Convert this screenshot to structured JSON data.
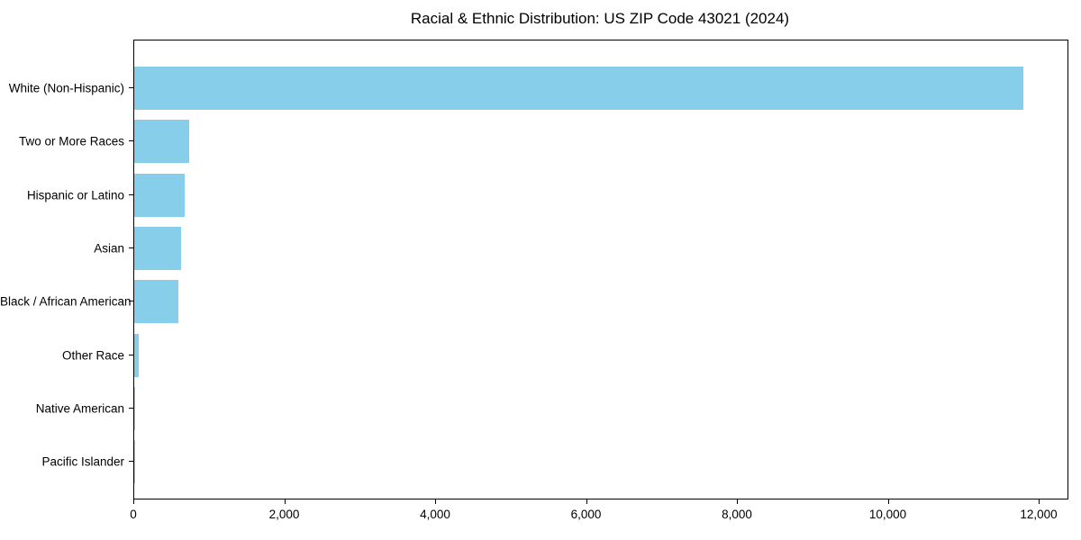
{
  "title": "Racial & Ethnic Distribution: US ZIP Code 43021 (2024)",
  "colors": {
    "bar": "#87CEEB",
    "axis": "#000000",
    "background": "#FFFFFF",
    "text": "#000000"
  },
  "chart_data": {
    "type": "bar",
    "orientation": "horizontal",
    "title": "Racial & Ethnic Distribution: US ZIP Code 43021 (2024)",
    "xlabel": "",
    "ylabel": "",
    "categories": [
      "White (Non-Hispanic)",
      "Two or More Races",
      "Hispanic or Latino",
      "Asian",
      "Black / African American",
      "Other Race",
      "Native American",
      "Pacific Islander"
    ],
    "values": [
      11780,
      725,
      670,
      620,
      585,
      55,
      12,
      3
    ],
    "xlim": [
      0,
      12370
    ],
    "xticks": [
      0,
      2000,
      4000,
      6000,
      8000,
      10000,
      12000
    ],
    "xtick_labels": [
      "0",
      "2,000",
      "4,000",
      "6,000",
      "8,000",
      "10,000",
      "12,000"
    ],
    "bar_color": "#87CEEB",
    "grid": false,
    "legend_position": "none"
  }
}
